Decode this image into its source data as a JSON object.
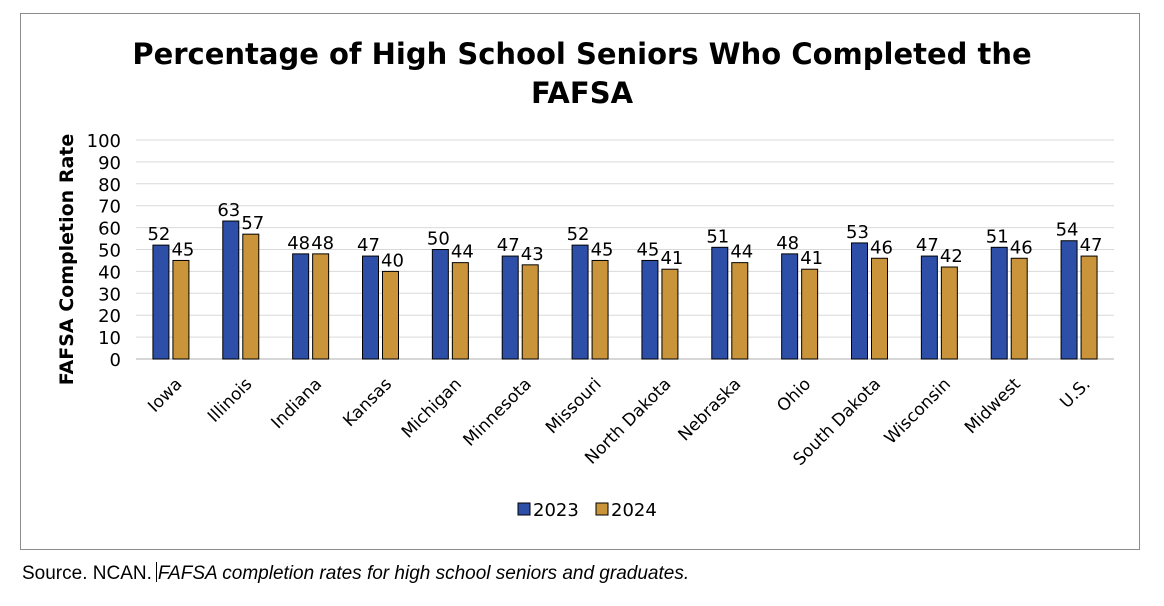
{
  "chart_data": {
    "type": "bar",
    "title": "Percentage of High School Seniors Who Completed the FAFSA",
    "title_lines": [
      "Percentage of High School Seniors Who Completed the",
      "FAFSA"
    ],
    "ylabel": "FAFSA Completion Rate",
    "xlabel": "",
    "ylim": [
      0,
      100
    ],
    "yticks": [
      0,
      10,
      20,
      30,
      40,
      50,
      60,
      70,
      80,
      90,
      100
    ],
    "grid": true,
    "legend_position": "bottom",
    "categories": [
      "Iowa",
      "Illinois",
      "Indiana",
      "Kansas",
      "Michigan",
      "Minnesota",
      "Missouri",
      "North Dakota",
      "Nebraska",
      "Ohio",
      "South Dakota",
      "Wisconsin",
      "Midwest",
      "U.S."
    ],
    "series": [
      {
        "name": "2023",
        "color": "#2e4fa8",
        "values": [
          52,
          63,
          48,
          47,
          50,
          47,
          52,
          45,
          51,
          48,
          53,
          47,
          51,
          54
        ]
      },
      {
        "name": "2024",
        "color": "#c9943a",
        "values": [
          45,
          57,
          48,
          40,
          44,
          43,
          45,
          41,
          44,
          41,
          46,
          42,
          46,
          47
        ]
      }
    ]
  },
  "source": {
    "prefix": "Source. NCAN.",
    "italic": "FAFSA completion rates for high school seniors and graduates."
  }
}
